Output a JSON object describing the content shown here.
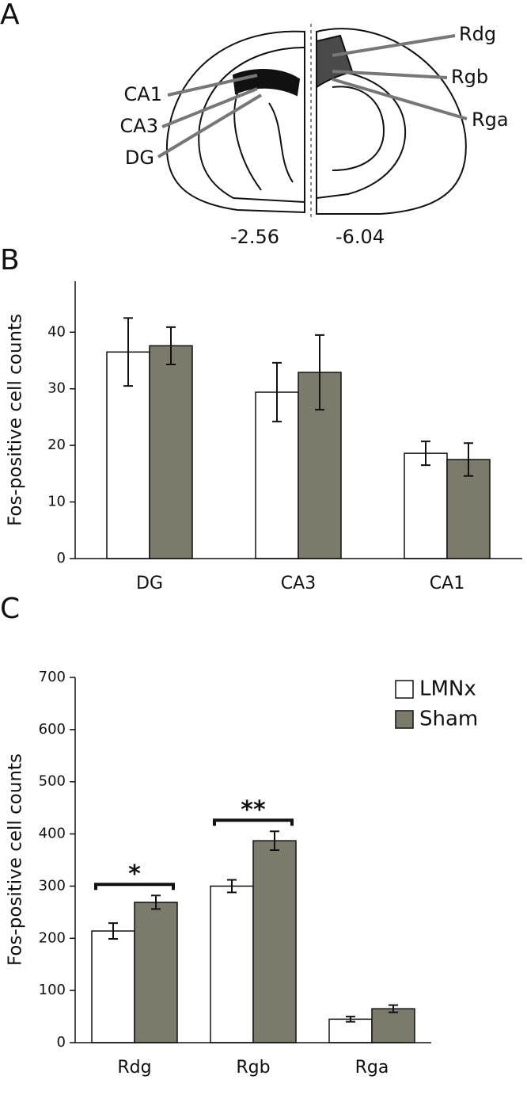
{
  "panel_a": {
    "letter": "A",
    "left_labels": [
      "CA1",
      "CA3",
      "DG"
    ],
    "right_labels": [
      "Rdg",
      "Rgb",
      "Rga"
    ],
    "positions": [
      "-2.56",
      "-6.04"
    ]
  },
  "chart_data": [
    {
      "type": "bar",
      "letter": "B",
      "y_label": "Fos-positive cell counts",
      "categories": [
        "DG",
        "CA3",
        "CA1"
      ],
      "series": [
        {
          "name": "LMNx",
          "color": "#ffffff",
          "values": [
            36.5,
            29.4,
            18.6
          ],
          "errors": [
            6.0,
            5.2,
            2.1
          ]
        },
        {
          "name": "Sham",
          "color": "#7a7b6b",
          "values": [
            37.6,
            32.9,
            17.5
          ],
          "errors": [
            3.3,
            6.6,
            2.9
          ]
        }
      ],
      "ylim": [
        0,
        49
      ],
      "yticks": [
        0,
        10,
        20,
        30,
        40
      ],
      "legend": false
    },
    {
      "type": "bar",
      "letter": "C",
      "y_label": "Fos-positive cell counts",
      "categories": [
        "Rdg",
        "Rgb",
        "Rga"
      ],
      "series": [
        {
          "name": "LMNx",
          "color": "#ffffff",
          "values": [
            214,
            300,
            45
          ],
          "errors": [
            15,
            12,
            5
          ]
        },
        {
          "name": "Sham",
          "color": "#7a7b6b",
          "values": [
            269,
            387,
            65
          ],
          "errors": [
            13,
            18,
            7
          ]
        }
      ],
      "annotations": [
        "*",
        "**",
        null
      ],
      "ylim": [
        0,
        700
      ],
      "yticks": [
        0,
        100,
        200,
        300,
        400,
        500,
        600,
        700
      ],
      "legend": "top-right"
    }
  ]
}
